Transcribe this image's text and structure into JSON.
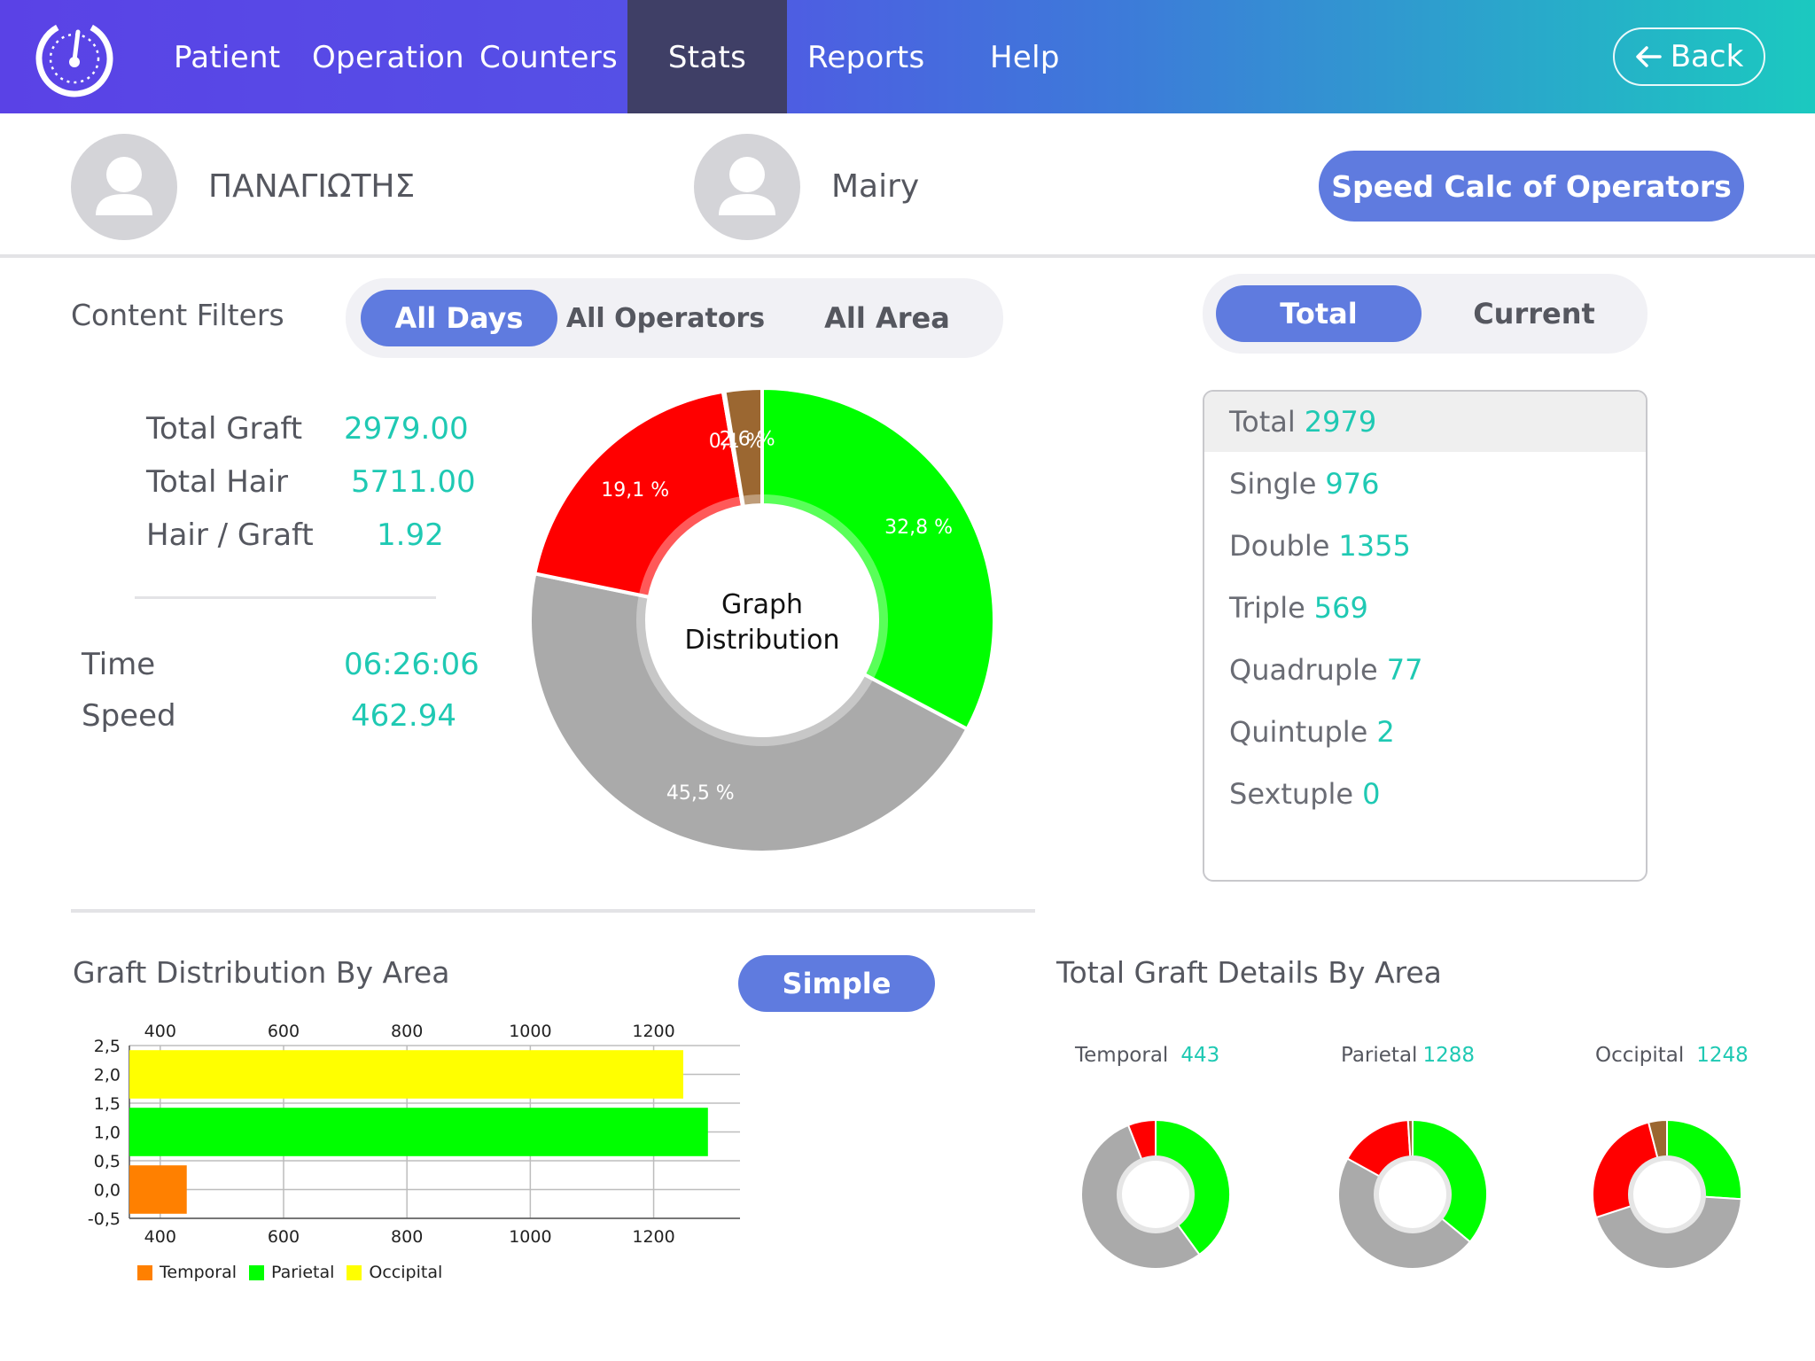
{
  "nav": {
    "items": [
      {
        "label": "Patient",
        "active": false
      },
      {
        "label": "Operation",
        "active": false
      },
      {
        "label": "Counters",
        "active": false
      },
      {
        "label": "Stats",
        "active": true
      },
      {
        "label": "Reports",
        "active": false
      },
      {
        "label": "Help",
        "active": false
      }
    ],
    "back_label": "Back",
    "logo_icon": "speedometer-icon"
  },
  "patient": {
    "name": "ΠΑΝΑΓΙΩΤΗΣ",
    "operator": "Mairy",
    "speed_calc_label": "Speed Calc of Operators"
  },
  "filters": {
    "title": "Content Filters",
    "options": [
      "All Days",
      "All Operators",
      "All Area"
    ],
    "selected": "All Days"
  },
  "mode_toggle": {
    "options": [
      "Total",
      "Current"
    ],
    "selected": "Total"
  },
  "stats": {
    "total_graft_label": "Total Graft",
    "total_graft_value": "2979.00",
    "total_hair_label": "Total Hair",
    "total_hair_value": "5711.00",
    "hair_graft_label": "Hair / Graft",
    "hair_graft_value": "1.92",
    "time_label": "Time",
    "time_value": "06:26:06",
    "speed_label": "Speed",
    "speed_value": "462.94"
  },
  "graft_types": [
    {
      "label": "Total",
      "value": "2979"
    },
    {
      "label": "Single",
      "value": "976"
    },
    {
      "label": "Double",
      "value": "1355"
    },
    {
      "label": "Triple",
      "value": "569"
    },
    {
      "label": "Quadruple",
      "value": "77"
    },
    {
      "label": "Quintuple",
      "value": "2"
    },
    {
      "label": "Sextuple",
      "value": "0"
    }
  ],
  "bottom": {
    "left_title": "Graft Distribution By Area",
    "simple_label": "Simple",
    "right_title": "Total Graft Details By Area"
  },
  "colors": {
    "accent": "#5f7bdf",
    "value_teal": "#1fc9b3",
    "green": "#00ff00",
    "red": "#ff0000",
    "gray": "#aaaaaa",
    "brown": "#9b6731",
    "orange": "#ff8000",
    "yellow": "#ffff00"
  },
  "chart_data": [
    {
      "type": "pie",
      "title": "Graph Distribution",
      "center_label_line1": "Graph",
      "center_label_line2": "Distribution",
      "slices": [
        {
          "value": 32.8,
          "label": "32,8 %",
          "color": "#00ff00"
        },
        {
          "value": 45.5,
          "label": "45,5 %",
          "color": "#aaaaaa"
        },
        {
          "value": 19.1,
          "label": "19,1 %",
          "color": "#ff0000"
        },
        {
          "value": 0.1,
          "label": "",
          "color": "#ffffff"
        },
        {
          "value": 2.6,
          "label": "2,6 %",
          "color": "#9b6731"
        }
      ],
      "overlap_label": "0,1 %"
    },
    {
      "type": "bar",
      "orientation": "horizontal",
      "x_ticks": [
        "400",
        "600",
        "800",
        "1000",
        "1200"
      ],
      "y_ticks": [
        "2,5",
        "2,0",
        "1,5",
        "1,0",
        "0,5",
        "0,0",
        "-0,5"
      ],
      "xlim": [
        350,
        1340
      ],
      "ylim": [
        -0.5,
        2.5
      ],
      "series": [
        {
          "name": "Temporal",
          "value": 443,
          "y": 0,
          "color": "#ff8000"
        },
        {
          "name": "Parietal",
          "value": 1288,
          "y": 1,
          "color": "#00ff00"
        },
        {
          "name": "Occipital",
          "value": 1248,
          "y": 2,
          "color": "#ffff00"
        }
      ],
      "grid": true,
      "legend": "bottom-left"
    },
    {
      "type": "pie",
      "area": "Temporal",
      "total": "443",
      "slices": [
        {
          "value": 40,
          "color": "#00ff00"
        },
        {
          "value": 54,
          "color": "#aaaaaa"
        },
        {
          "value": 6,
          "color": "#ff0000"
        }
      ]
    },
    {
      "type": "pie",
      "area": "Parietal",
      "total": "1288",
      "slices": [
        {
          "value": 36,
          "color": "#00ff00"
        },
        {
          "value": 47,
          "color": "#aaaaaa"
        },
        {
          "value": 16,
          "color": "#ff0000"
        },
        {
          "value": 1,
          "color": "#9b6731"
        }
      ]
    },
    {
      "type": "pie",
      "area": "Occipital",
      "total": "1248",
      "slices": [
        {
          "value": 26,
          "color": "#00ff00"
        },
        {
          "value": 44,
          "color": "#aaaaaa"
        },
        {
          "value": 26,
          "color": "#ff0000"
        },
        {
          "value": 4,
          "color": "#9b6731"
        }
      ]
    }
  ]
}
